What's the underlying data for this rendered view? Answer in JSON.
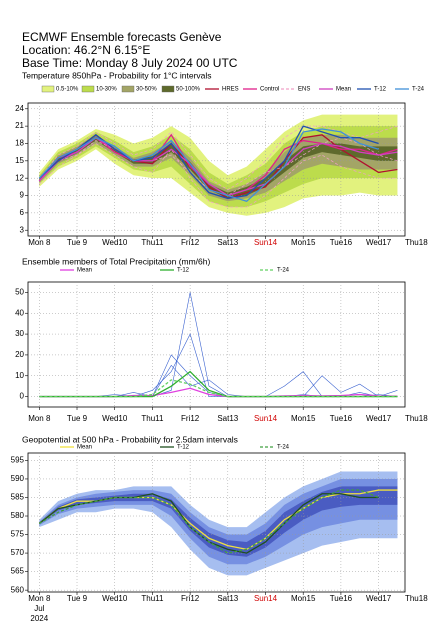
{
  "header": {
    "lines": [
      "ECMWF Ensemble forecasts Genève",
      "Location:  46.2°N 6.15°E",
      "Base Time: Monday  8 July 2024 00 UTC"
    ]
  },
  "chart_data": [
    {
      "type": "line",
      "title": "Temperature 850hPa - Probability for 1°C intervals",
      "grid": true,
      "x": [
        0,
        0.5,
        1,
        1.5,
        2,
        2.5,
        3,
        3.5,
        4,
        4.5,
        5,
        5.5,
        6,
        6.5,
        7,
        7.5,
        8,
        8.5,
        9,
        9.5
      ],
      "xlim": [
        -0.3,
        9.7
      ],
      "xticks": [
        {
          "value": 0,
          "label": "Mon 8"
        },
        {
          "value": 1,
          "label": "Tue 9"
        },
        {
          "value": 2,
          "label": "Wed10"
        },
        {
          "value": 3,
          "label": "Thu11"
        },
        {
          "value": 4,
          "label": "Fri12"
        },
        {
          "value": 5,
          "label": "Sat13"
        },
        {
          "value": 6,
          "label": "Sun14",
          "color": "#d00000"
        },
        {
          "value": 7,
          "label": "Mon15"
        },
        {
          "value": 8,
          "label": "Tue16"
        },
        {
          "value": 9,
          "label": "Wed17"
        },
        {
          "value": 10,
          "label": "Thu18"
        }
      ],
      "ylim": [
        2,
        25
      ],
      "yticks": [
        3,
        6,
        9,
        12,
        15,
        18,
        21,
        24
      ],
      "bands": [
        {
          "name": "0.5-10%",
          "color": "#e2f27e",
          "low": [
            10.5,
            13.5,
            15,
            17,
            14.5,
            12.5,
            12,
            12,
            9.5,
            7,
            6,
            5.5,
            6,
            7,
            8.5,
            9,
            9,
            9.5,
            9,
            9
          ],
          "high": [
            13,
            17,
            18.5,
            20.5,
            19.5,
            18,
            19,
            21,
            19,
            15,
            12.5,
            14,
            17,
            20,
            22,
            23,
            23,
            23,
            23,
            23
          ]
        },
        {
          "name": "10-30%",
          "color": "#bcdc4c",
          "low": [
            11,
            14,
            15.5,
            17.5,
            15.5,
            13.5,
            13,
            14,
            11,
            8,
            7,
            7,
            8,
            9.5,
            11,
            12,
            12,
            12,
            12,
            12
          ],
          "high": [
            12.5,
            16.5,
            18,
            20,
            18.5,
            16.5,
            17.5,
            19.5,
            17,
            13,
            11,
            12.5,
            14.5,
            18,
            20,
            21,
            21,
            21,
            21,
            21
          ]
        },
        {
          "name": "30-50%",
          "color": "#a3a566",
          "low": [
            11.2,
            14.5,
            16,
            18,
            16,
            14,
            14,
            15.5,
            12.5,
            9,
            8,
            8.5,
            9.5,
            11.5,
            13.5,
            14.5,
            14,
            13.5,
            13.5,
            13.5
          ],
          "high": [
            12.2,
            16,
            17.5,
            19.5,
            17.5,
            15.5,
            16.5,
            18.5,
            15.5,
            11.5,
            10,
            11,
            13,
            16.5,
            19,
            19.5,
            19.5,
            19,
            19,
            19
          ]
        },
        {
          "name": "50-100%",
          "color": "#5e6a2c",
          "low": [
            11.4,
            14.8,
            16.3,
            18.5,
            16.5,
            14.5,
            14.5,
            16.5,
            13.5,
            10,
            8.5,
            9,
            10.5,
            13,
            15.5,
            16.5,
            16,
            15.5,
            15,
            15
          ],
          "high": [
            12,
            15.5,
            17,
            19.2,
            17.2,
            15.2,
            15.8,
            18,
            14.8,
            11,
            9.5,
            10.5,
            12,
            15,
            17.5,
            18,
            18,
            17.5,
            17.5,
            17.5
          ]
        }
      ],
      "series": [
        {
          "name": "HRES",
          "color": "#b01030",
          "values": [
            11.5,
            15.5,
            17,
            19.5,
            17,
            15,
            14.5,
            18,
            14,
            10.5,
            8.5,
            9.5,
            10.5,
            15,
            19,
            19.5,
            17,
            15,
            13,
            13.5
          ]
        },
        {
          "name": "Control",
          "color": "#e0208a",
          "values": [
            11.5,
            15.5,
            16.5,
            19,
            16.5,
            15,
            15,
            19.5,
            14,
            11,
            9,
            10,
            12.5,
            17,
            18.5,
            18,
            17,
            17,
            16,
            17
          ]
        },
        {
          "name": "ENS",
          "color": "#f0a0c8",
          "dash": true,
          "members": [
            [
              11,
              14,
              16,
              18,
              16,
              14,
              13,
              17,
              12,
              8,
              7,
              7,
              9,
              12,
              15,
              16,
              14,
              13,
              12,
              12
            ],
            [
              12,
              16,
              17.5,
              20,
              18,
              16,
              17,
              20,
              16,
              12,
              10,
              12,
              15,
              19,
              21,
              21,
              20,
              19,
              20,
              21
            ],
            [
              11.5,
              15,
              16,
              18.5,
              17,
              15,
              15,
              16,
              13,
              10,
              9,
              11,
              13,
              14,
              16,
              18,
              19,
              18,
              16,
              15
            ]
          ]
        },
        {
          "name": "Mean",
          "color": "#d040c0",
          "values": [
            11.5,
            15,
            16.5,
            19,
            17,
            15,
            15,
            17,
            14.5,
            11,
            9,
            10,
            11,
            14,
            17,
            18,
            17.5,
            16.5,
            16,
            16.5
          ]
        },
        {
          "name": "T-12",
          "color": "#2050b0",
          "values": [
            12,
            15,
            17,
            19.5,
            17,
            15,
            15.5,
            18,
            13,
            9.5,
            8.5,
            9,
            12,
            15,
            21,
            20,
            19,
            19,
            18,
            null
          ]
        },
        {
          "name": "T-24",
          "color": "#4090d8",
          "values": [
            12,
            15.5,
            17,
            19,
            17.5,
            15,
            16,
            18.5,
            14.5,
            10,
            9,
            8,
            11,
            14,
            20,
            20.5,
            20,
            18,
            17,
            null
          ]
        }
      ]
    },
    {
      "type": "line",
      "title": "Ensemble members of Total Precipitation (mm/6h)",
      "grid": true,
      "x": [
        0,
        0.5,
        1,
        1.5,
        2,
        2.5,
        3,
        3.5,
        4,
        4.5,
        5,
        5.5,
        6,
        6.5,
        7,
        7.5,
        8,
        8.5,
        9,
        9.5
      ],
      "xlim": [
        -0.3,
        9.7
      ],
      "xticks": [
        {
          "value": 0,
          "label": "Mon 8"
        },
        {
          "value": 1,
          "label": "Tue 9"
        },
        {
          "value": 2,
          "label": "Wed10"
        },
        {
          "value": 3,
          "label": "Thu11"
        },
        {
          "value": 4,
          "label": "Fri12"
        },
        {
          "value": 5,
          "label": "Sat13"
        },
        {
          "value": 6,
          "label": "Sun14",
          "color": "#d00000"
        },
        {
          "value": 7,
          "label": "Mon15"
        },
        {
          "value": 8,
          "label": "Tue16"
        },
        {
          "value": 9,
          "label": "Wed17"
        },
        {
          "value": 10,
          "label": "Thu18"
        }
      ],
      "ylim": [
        -5,
        55
      ],
      "yticks": [
        0,
        10,
        20,
        30,
        40,
        50
      ],
      "ensemble_members": {
        "color": "#3a62d0",
        "members": [
          [
            0,
            0,
            0,
            0,
            0,
            0,
            0,
            3,
            50,
            5,
            0,
            0,
            0,
            0,
            1,
            0,
            0,
            2,
            0,
            0
          ],
          [
            0,
            0,
            0,
            0,
            0,
            2,
            0,
            20,
            10,
            2,
            0,
            0,
            0,
            5,
            12,
            0,
            0,
            0,
            1,
            0
          ],
          [
            0,
            0,
            0,
            0,
            1,
            0,
            3,
            12,
            30,
            0,
            0,
            0,
            0,
            0,
            0,
            10,
            2,
            6,
            0,
            3
          ],
          [
            0,
            0,
            0,
            0,
            0,
            0,
            0,
            15,
            5,
            8,
            1,
            0,
            0,
            0,
            0,
            0,
            0,
            0,
            0,
            0
          ]
        ]
      },
      "series": [
        {
          "name": "Mean",
          "color": "#e040e0",
          "values": [
            0,
            0,
            0,
            0,
            0,
            0.5,
            0.5,
            2,
            4,
            1,
            0,
            0,
            0,
            0.3,
            0.5,
            0.3,
            0.5,
            1,
            0.3,
            0.2
          ]
        },
        {
          "name": "T-12",
          "color": "#30b030",
          "values": [
            0,
            0,
            0,
            0,
            0,
            0,
            0,
            5,
            12,
            3,
            0,
            0,
            0,
            0,
            0,
            0,
            0,
            0,
            0,
            0
          ]
        },
        {
          "name": "T-24",
          "color": "#60d060",
          "dash": true,
          "values": [
            0,
            0,
            0,
            0,
            0,
            0,
            1,
            8,
            6,
            2,
            0,
            0,
            0,
            0,
            0,
            0,
            0,
            0,
            0,
            0
          ]
        }
      ]
    },
    {
      "type": "line",
      "title": "Geopotential at 500 hPa - Probability for 2.5dam intervals",
      "grid": true,
      "x": [
        0,
        0.5,
        1,
        1.5,
        2,
        2.5,
        3,
        3.5,
        4,
        4.5,
        5,
        5.5,
        6,
        6.5,
        7,
        7.5,
        8,
        8.5,
        9,
        9.5
      ],
      "xlim": [
        -0.3,
        9.7
      ],
      "xticks": [
        {
          "value": 0,
          "label": "Mon 8"
        },
        {
          "value": 1,
          "label": "Tue 9"
        },
        {
          "value": 2,
          "label": "Wed10"
        },
        {
          "value": 3,
          "label": "Thu11"
        },
        {
          "value": 4,
          "label": "Fri12"
        },
        {
          "value": 5,
          "label": "Sat13"
        },
        {
          "value": 6,
          "label": "Sun14",
          "color": "#d00000"
        },
        {
          "value": 7,
          "label": "Mon15"
        },
        {
          "value": 8,
          "label": "Tue16"
        },
        {
          "value": 9,
          "label": "Wed17"
        },
        {
          "value": 10,
          "label": "Thu18"
        }
      ],
      "x_sublabel": [
        "Jul",
        "2024"
      ],
      "ylim": [
        559.5,
        597
      ],
      "yticks": [
        560,
        565,
        570,
        575,
        580,
        585,
        590,
        595
      ],
      "bands": [
        {
          "color": "#a6bef0",
          "low": [
            577,
            579,
            581,
            581,
            582,
            582,
            581,
            577,
            571,
            566,
            564,
            564,
            566,
            568,
            570,
            572,
            573,
            574,
            574,
            574
          ],
          "high": [
            579,
            584,
            586,
            587,
            587,
            588,
            588,
            588,
            583,
            579,
            577,
            577,
            581,
            585,
            588,
            590,
            592,
            592,
            592,
            592
          ]
        },
        {
          "color": "#7690e2",
          "low": [
            577.5,
            580.5,
            582,
            582.5,
            583,
            583,
            583,
            580,
            574,
            569,
            567,
            567,
            569,
            572,
            575,
            577,
            578,
            579,
            579,
            579
          ],
          "high": [
            578.5,
            583,
            585,
            586,
            586.5,
            587,
            587,
            586,
            581,
            577,
            575,
            575,
            578,
            583,
            586,
            588,
            590,
            590,
            590,
            590
          ]
        },
        {
          "color": "#4a5cc2",
          "low": [
            577.8,
            581.5,
            583,
            583.5,
            584,
            584,
            584,
            582,
            576,
            571.5,
            569.5,
            569,
            571.5,
            575.5,
            579,
            581.5,
            582.5,
            583,
            583,
            583
          ],
          "high": [
            578.2,
            582.5,
            584.5,
            585,
            585.5,
            586,
            586,
            584.5,
            579.5,
            575.5,
            573.5,
            573,
            576,
            581,
            584,
            586.5,
            588,
            588,
            588,
            588
          ]
        }
      ],
      "series": [
        {
          "name": "Mean",
          "color": "#f0e040",
          "values": [
            578,
            582,
            584,
            584,
            585,
            585,
            585,
            583,
            578,
            574,
            572,
            571,
            574,
            579,
            582,
            585,
            586,
            586,
            587,
            587
          ]
        },
        {
          "name": "T-12",
          "color": "#205020",
          "values": [
            578,
            582,
            583,
            584,
            585,
            585,
            586,
            584,
            577,
            573,
            571,
            570,
            573,
            578,
            583,
            586,
            586,
            585,
            585,
            null
          ]
        },
        {
          "name": "T-24",
          "color": "#40a040",
          "dash": true,
          "values": [
            578,
            581,
            583,
            584,
            585,
            585,
            585,
            583,
            577,
            573,
            570,
            571,
            574,
            578,
            582,
            585,
            587,
            587,
            585,
            null
          ]
        }
      ]
    }
  ]
}
